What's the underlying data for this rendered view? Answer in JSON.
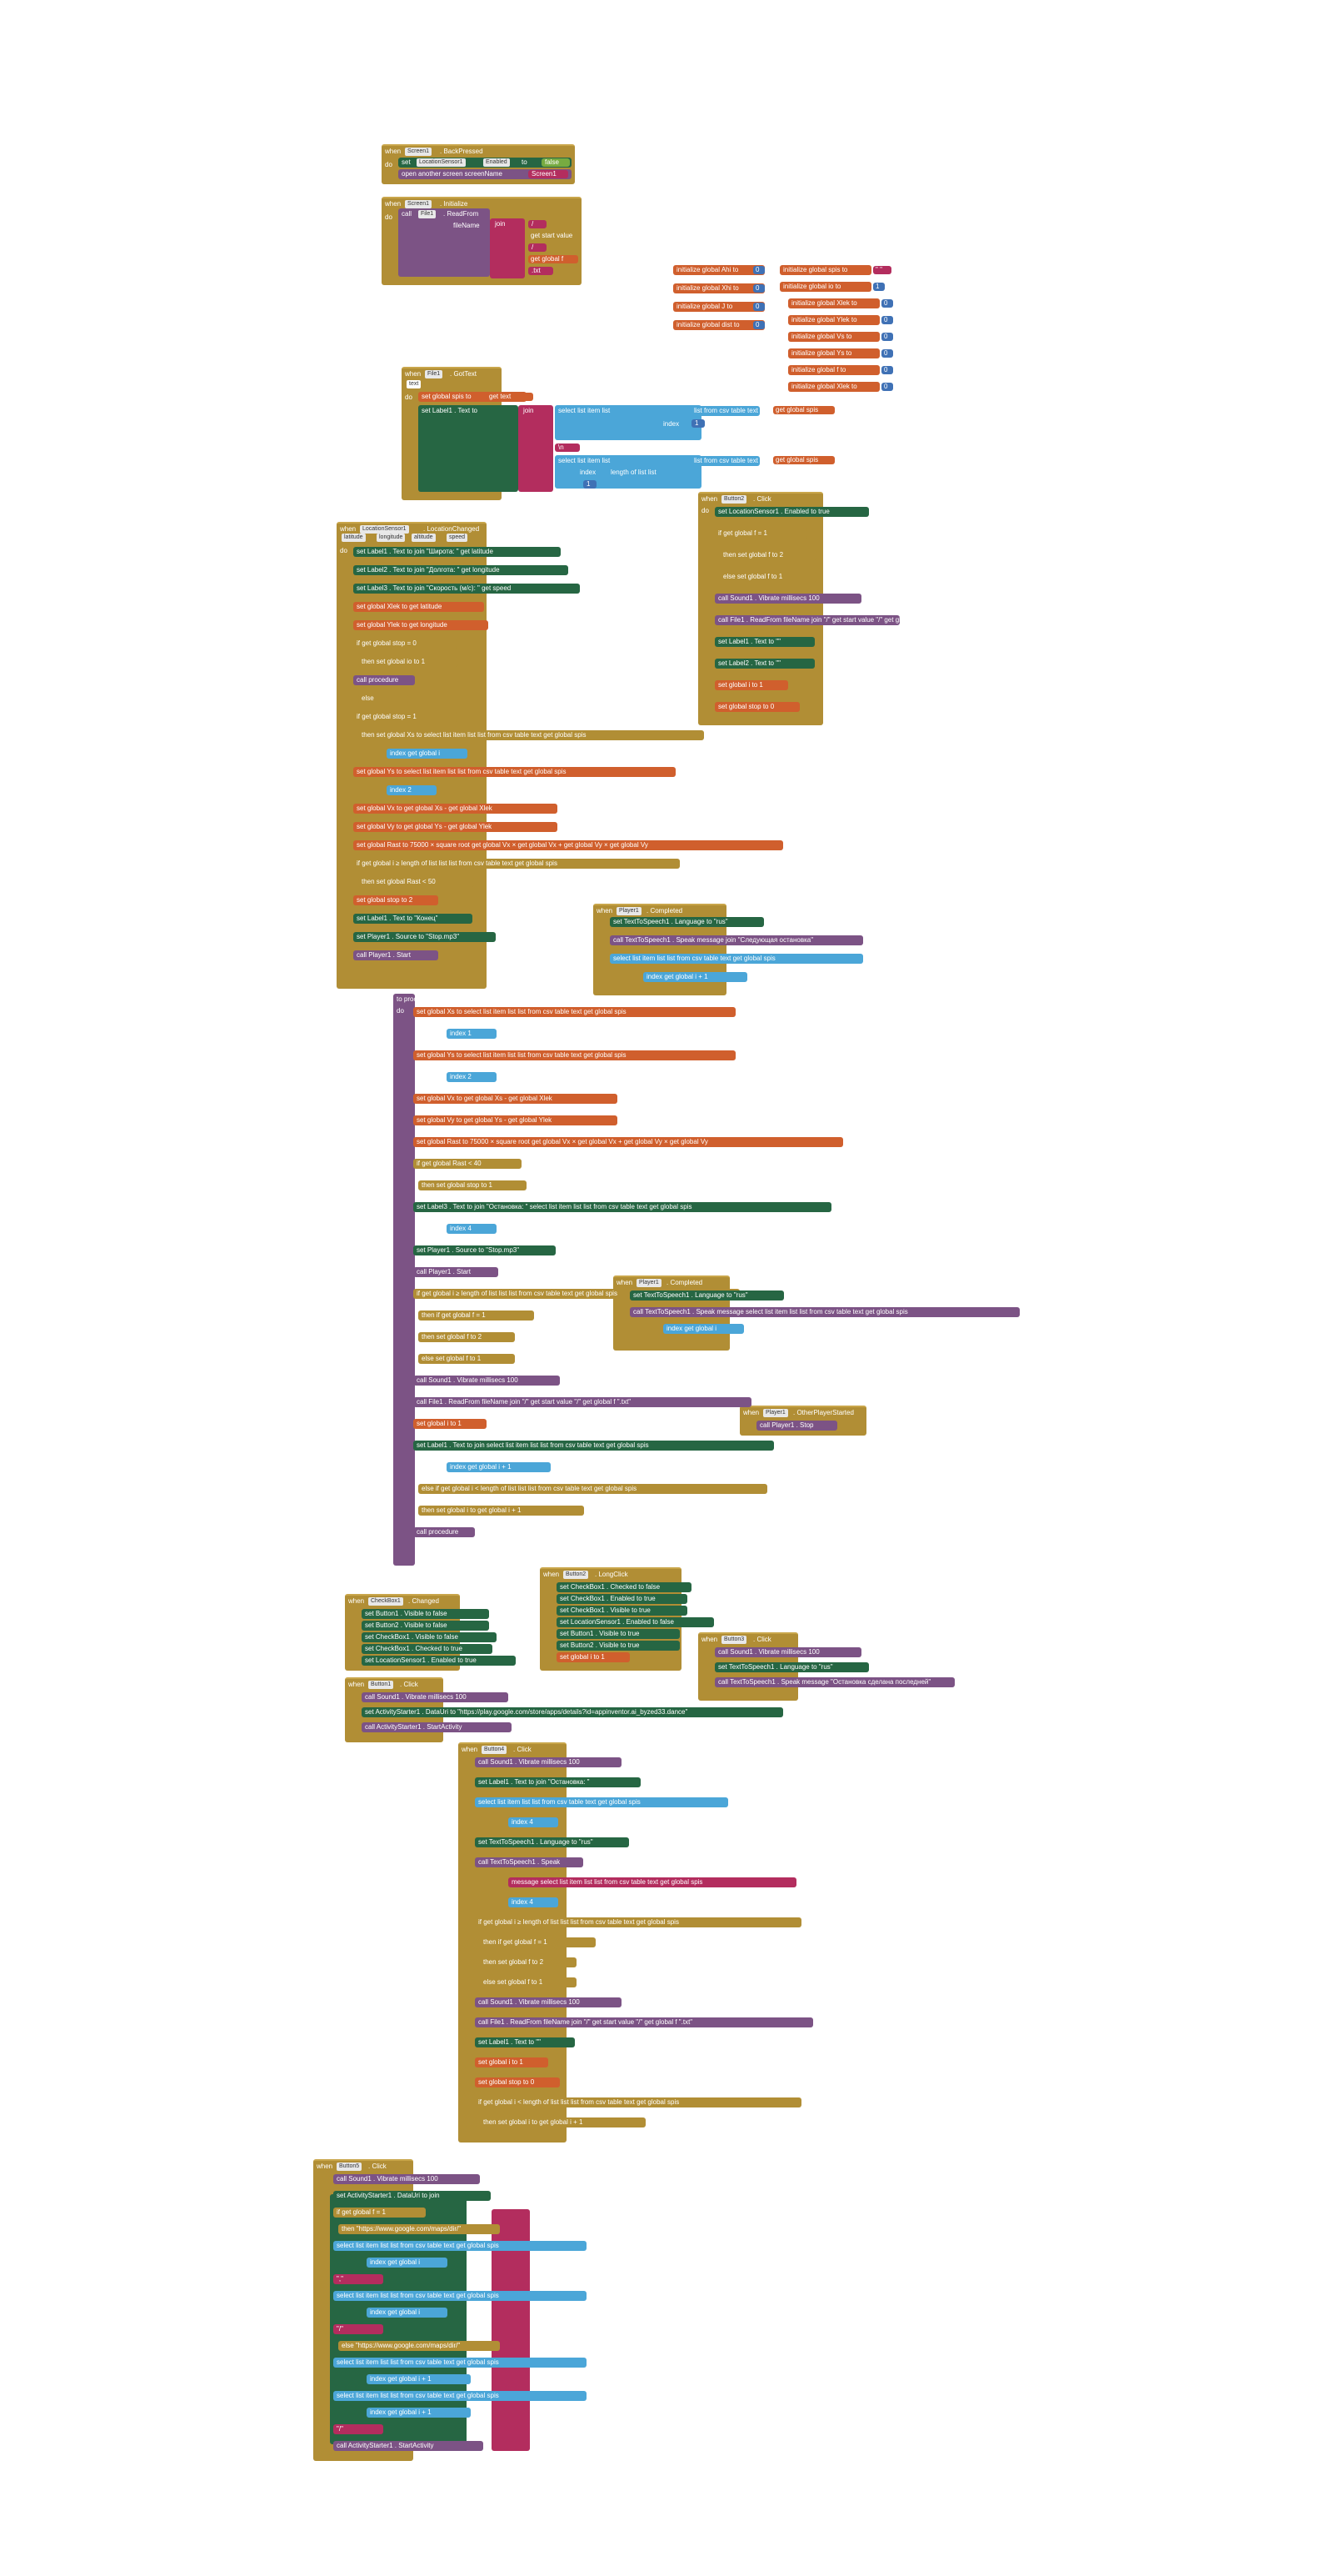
{
  "palette": {
    "control": "#b18e35",
    "procedures": "#7c5385",
    "variables": "#d05f2d",
    "components": "#266643",
    "lists": "#4ba6d8",
    "text": "#b32d5e",
    "logic": "#77ab41",
    "math": "#3f71b5"
  },
  "backpressed": {
    "when": "when",
    "screen": "Screen1",
    "event": ". BackPressed",
    "do": "do",
    "set": "set",
    "comp": "LocationSensor1",
    "prop": "Enabled",
    "to": "to",
    "val": "false",
    "open": "open another screen screenName",
    "screen_name": "Screen1"
  },
  "initialize": {
    "when": "when",
    "screen": "Screen1",
    "event": ". Initialize",
    "do": "do",
    "call": "call",
    "comp": "File1",
    "method": ". ReadFrom",
    "arg": "fileName",
    "join": "join",
    "s1": "/",
    "start": "get start value",
    "s2": "/",
    "g1": "get global f",
    "ext": ".txt"
  },
  "globals_left": [
    {
      "label": "initialize global",
      "name": "Ahi",
      "to": "to",
      "val": "0"
    },
    {
      "label": "initialize global",
      "name": "Xhi",
      "to": "to",
      "val": "0"
    },
    {
      "label": "initialize global",
      "name": "J",
      "to": "to",
      "val": "0"
    },
    {
      "label": "initialize global",
      "name": "dist",
      "to": "to",
      "val": "0"
    }
  ],
  "globals_right": [
    {
      "label": "initialize global",
      "name": "spis",
      "to": "to",
      "val": "\" \""
    },
    {
      "label": "initialize global",
      "name": "io",
      "to": "to",
      "val": "1"
    },
    {
      "label": "initialize global",
      "name": "Xlek",
      "to": "to",
      "val": "0"
    },
    {
      "label": "initialize global",
      "name": "Ylek",
      "to": "to",
      "val": "0"
    },
    {
      "label": "initialize global",
      "name": "Vs",
      "to": "to",
      "val": "0"
    },
    {
      "label": "initialize global",
      "name": "Ys",
      "to": "to",
      "val": "0"
    },
    {
      "label": "initialize global",
      "name": "f",
      "to": "to",
      "val": "0"
    },
    {
      "label": "initialize global",
      "name": "Xlek",
      "to": "to",
      "val": "0"
    }
  ],
  "gottext": {
    "when": "when",
    "comp": "File1",
    "event": ". GotText",
    "param": "text",
    "do": "do",
    "set1": "set global spis to",
    "get_text": "get text",
    "set2": "set Label1 . Text to",
    "join": "join",
    "sel": "select list item list",
    "from_csv": "list from csv table text",
    "get_spis": "get global spis",
    "index": "index",
    "i1": "1",
    "nl": "\\n",
    "length": "length of list list",
    "i2": "1"
  },
  "locchanged": {
    "when": "when",
    "comp": "LocationSensor1",
    "event": ". LocationChanged",
    "params": [
      "latitude",
      "longitude",
      "altitude",
      "speed"
    ],
    "do": "do",
    "rows": [
      "set Label1 . Text to  join  \"Широта: \"  get latitude",
      "set Label2 . Text to  join  \"Долгота: \"  get longitude",
      "set Label3 . Text to  join  \"Скорость (м/с): \"  get speed",
      "set global Xlek to  get latitude",
      "set global Ylek to  get longitude",
      "if  get global stop  =  0",
      "then  set global io to 1",
      "call procedure",
      "else",
      "if  get global stop  =  1",
      "then  set global Xs to  select list item list  list from csv table text  get global spis",
      "index  get global i",
      "set global Ys to  select list item list  list from csv table text  get global spis",
      "index  2",
      "set global Vx to  get global Xs  -  get global Xlek",
      "set global Vy to  get global Ys  -  get global Ylek",
      "set global Rast to  75000  ×  square root  get global Vx  ×  get global Vx  +  get global Vy  ×  get global Vy",
      "if  get global i  ≥  length of list list  list from csv table text  get global spis",
      "then  set global Rast  <  50",
      "set global stop to 2",
      "set Label1 . Text to  \"Конец\"",
      "set Player1 . Source to  \"Stop.mp3\"",
      "call Player1 . Start"
    ]
  },
  "button2": {
    "when": "when",
    "comp": "Button2",
    "event": ". Click",
    "do": "do",
    "rows": [
      "set LocationSensor1 . Enabled to  true",
      "if  get global f  =  1",
      "then  set global f to 2",
      "else  set global f to 1",
      "call Sound1 . Vibrate  millisecs 100",
      "call File1 . ReadFrom  fileName  join  \"/\"  get start value  \"/\"  get global f  \".txt\"",
      "set Label1 . Text to  \"\"",
      "set Label2 . Text to  \"\"",
      "set global i to 1",
      "set global stop to 0"
    ]
  },
  "player_completed_1": {
    "when": "when",
    "comp": "Player1",
    "event": ". Completed",
    "rows": [
      "set TextToSpeech1 . Language to  \"rus\"",
      "call TextToSpeech1 . Speak  message  join  \"Следующая остановка\"",
      "select list item list  list from csv table text  get global spis",
      "index  get global i  +  1"
    ]
  },
  "procedure": {
    "head": "to procedure",
    "do": "do",
    "rows": [
      "set global Xs to  select list item list  list from csv table text  get global spis",
      "index 1",
      "set global Ys to  select list item list  list from csv table text  get global spis",
      "index 2",
      "set global Vx to  get global Xs  -  get global Xlek",
      "set global Vy to  get global Ys  -  get global Ylek",
      "set global Rast to  75000  ×  square root  get global Vx  ×  get global Vx  +  get global Vy  ×  get global Vy",
      "if  get global Rast  <  40",
      "then  set global stop to 1",
      "set Label3 . Text to  join  \"Остановка: \"  select list item list  list from csv table text  get global spis",
      "index 4",
      "set Player1 . Source to  \"Stop.mp3\"",
      "call Player1 . Start",
      "if  get global i  ≥  length of list list  list from csv table text  get global spis",
      "then  if  get global f  =  1",
      "then  set global f to 2",
      "else  set global f to 1",
      "call Sound1 . Vibrate  millisecs 100",
      "call File1 . ReadFrom  fileName  join  \"/\"  get start value  \"/\"  get global f  \".txt\"",
      "set global i to 1",
      "set Label1 . Text to  join  select list item list  list from csv table text  get global spis",
      "index  get global i  +  1",
      "else  if  get global i  <  length of list list  list from csv table text  get global spis",
      "then  set global i to  get global i  +  1",
      "call procedure"
    ]
  },
  "player_completed_2": {
    "when": "when",
    "comp": "Player1",
    "event": ". Completed",
    "rows": [
      "set TextToSpeech1 . Language to  \"rus\"",
      "call TextToSpeech1 . Speak  message  select list item list  list from csv table text  get global spis",
      "index  get global i"
    ]
  },
  "player_other": {
    "when": "when",
    "comp": "Player1",
    "event": ". OtherPlayerStarted",
    "rows": [
      "call Player1 . Stop"
    ]
  },
  "checkbox": {
    "when": "when",
    "comp": "CheckBox1",
    "event": ". Changed",
    "rows": [
      "set Button1 . Visible to  false",
      "set Button2 . Visible to  false",
      "set CheckBox1 . Visible to  false",
      "set CheckBox1 . Checked to  true",
      "set LocationSensor1 . Enabled to  true"
    ]
  },
  "button2_long": {
    "when": "when",
    "comp": "Button2",
    "event": ". LongClick",
    "rows": [
      "set CheckBox1 . Checked to  false",
      "set CheckBox1 . Enabled to  true",
      "set CheckBox1 . Visible to  true",
      "set LocationSensor1 . Enabled to  false",
      "set Button1 . Visible to  true",
      "set Button2 . Visible to  true",
      "set global i to 1"
    ]
  },
  "button3": {
    "when": "when",
    "comp": "Button3",
    "event": ". Click",
    "rows": [
      "call Sound1 . Vibrate  millisecs 100",
      "set TextToSpeech1 . Language to  \"rus\"",
      "call TextToSpeech1 . Speak  message  \"Остановка сделана последней\""
    ]
  },
  "button1": {
    "when": "when",
    "comp": "Button1",
    "event": ". Click",
    "rows": [
      "call Sound1 . Vibrate  millisecs 100",
      "set ActivityStarter1 . DataUri to  \"https://play.google.com/store/apps/details?id=appinventor.ai_byzed33.dance\"",
      "call ActivityStarter1 . StartActivity"
    ]
  },
  "button4": {
    "when": "when",
    "comp": "Button4",
    "event": ". Click",
    "rows": [
      "call Sound1 . Vibrate  millisecs 100",
      "set Label1 . Text to  join  \"Остановка: \"",
      "select list item list  list from csv table text  get global spis",
      "index 4",
      "set TextToSpeech1 . Language to  \"rus\"",
      "call TextToSpeech1 . Speak",
      "message  select list item list  list from csv table text  get global spis",
      "index 4",
      "if  get global i  ≥  length of list list  list from csv table text  get global spis",
      "then  if  get global f  =  1",
      "then  set global f to 2",
      "else  set global f to 1",
      "call Sound1 . Vibrate  millisecs 100",
      "call File1 . ReadFrom  fileName  join  \"/\"  get start value  \"/\"  get global f  \".txt\"",
      "set Label1 . Text to  \"\"",
      "set global i to 1",
      "set global stop to 0",
      "if  get global i  <  length of list list  list from csv table text  get global spis",
      "then  set global i to  get global i  +  1"
    ]
  },
  "button5": {
    "when": "when",
    "comp": "Button5",
    "event": ". Click",
    "rows": [
      "call Sound1 . Vibrate  millisecs 100",
      "set ActivityStarter1 . DataUri to  join",
      "if  get global f  =  1",
      "then  \"https://www.google.com/maps/dir/\"",
      "select list item list  list from csv table text  get global spis",
      "index  get global i",
      "\",\"",
      "select list item list  list from csv table text  get global spis",
      "index  get global i",
      "\"/\"",
      "else  \"https://www.google.com/maps/dir/\"",
      "select list item list  list from csv table text  get global spis",
      "index  get global i  +  1",
      "select list item list  list from csv table text  get global spis",
      "index  get global i  +  1",
      "\"/\"",
      "call ActivityStarter1 . StartActivity"
    ]
  }
}
